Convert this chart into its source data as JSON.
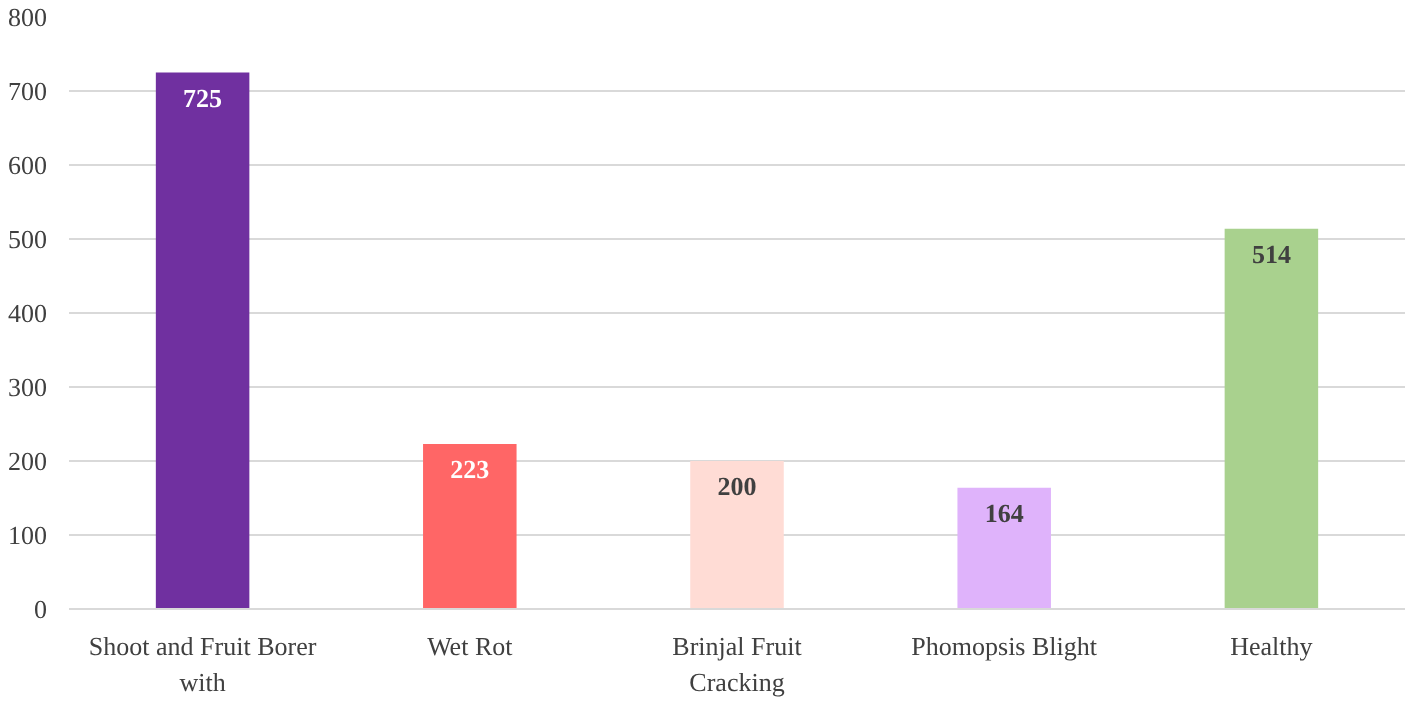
{
  "chart_data": {
    "type": "bar",
    "categories": [
      "Shoot and Fruit Borer with",
      "Wet Rot",
      "Brinjal Fruit Cracking",
      "Phomopsis Blight",
      "Healthy"
    ],
    "values": [
      725,
      223,
      200,
      164,
      514
    ],
    "colors": [
      "#7030a0",
      "#ff6666",
      "#ffdcd5",
      "#dfb3fb",
      "#a9d18e"
    ],
    "ylim": [
      0,
      800
    ],
    "yticks": [
      0,
      100,
      200,
      300,
      400,
      500,
      600,
      700,
      800
    ],
    "grid": "y",
    "data_labels": true
  }
}
